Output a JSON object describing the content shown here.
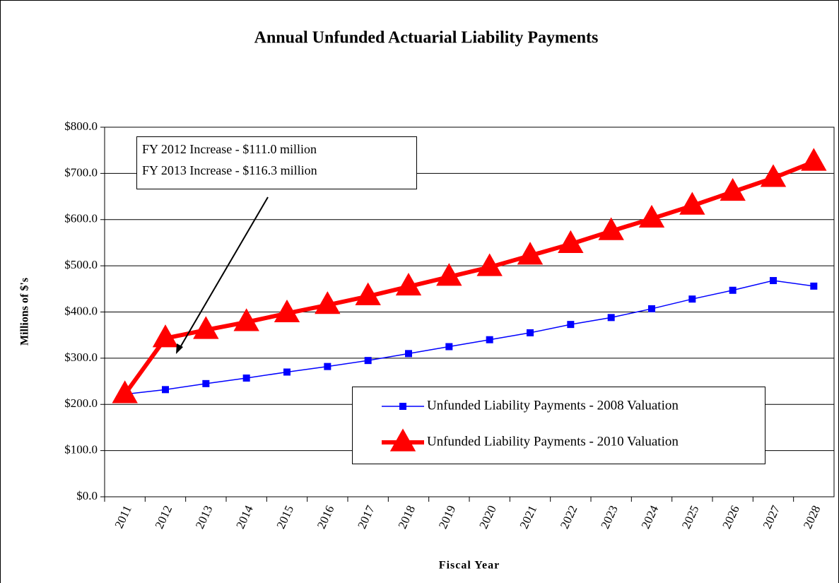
{
  "chart_data": {
    "type": "line",
    "title": "Annual Unfunded Actuarial Liability Payments",
    "x_label": "Fiscal Year",
    "y_label": "Millions of $'s",
    "categories": [
      "2011",
      "2012",
      "2013",
      "2014",
      "2015",
      "2016",
      "2017",
      "2018",
      "2019",
      "2020",
      "2021",
      "2022",
      "2023",
      "2024",
      "2025",
      "2026",
      "2027",
      "2028"
    ],
    "series": [
      {
        "name": "Unfunded Liability Payments - 2008 Valuation",
        "color": "#0000ff",
        "marker": "square",
        "values": [
          222,
          232,
          245,
          257,
          270,
          282,
          295,
          310,
          325,
          340,
          355,
          373,
          388,
          407,
          428,
          447,
          468,
          456
        ]
      },
      {
        "name": "Unfunded Liability Payments - 2010 Valuation",
        "color": "#ff0000",
        "marker": "triangle",
        "values": [
          222,
          343,
          361,
          378,
          397,
          415,
          434,
          455,
          476,
          497,
          522,
          547,
          575,
          602,
          630,
          660,
          690,
          725
        ]
      }
    ],
    "ylim": [
      0,
      800
    ],
    "yticks": [
      {
        "value": 0,
        "label": "$0.0"
      },
      {
        "value": 100,
        "label": "$100.0"
      },
      {
        "value": 200,
        "label": "$200.0"
      },
      {
        "value": 300,
        "label": "$300.0"
      },
      {
        "value": 400,
        "label": "$400.0"
      },
      {
        "value": 500,
        "label": "$500.0"
      },
      {
        "value": 600,
        "label": "$600.0"
      },
      {
        "value": 700,
        "label": "$700.0"
      },
      {
        "value": 800,
        "label": "$800.0"
      }
    ],
    "grid": true,
    "annotations": [
      "FY 2012 Increase - $111.0 million",
      "FY 2013 Increase - $116.3 million"
    ]
  }
}
